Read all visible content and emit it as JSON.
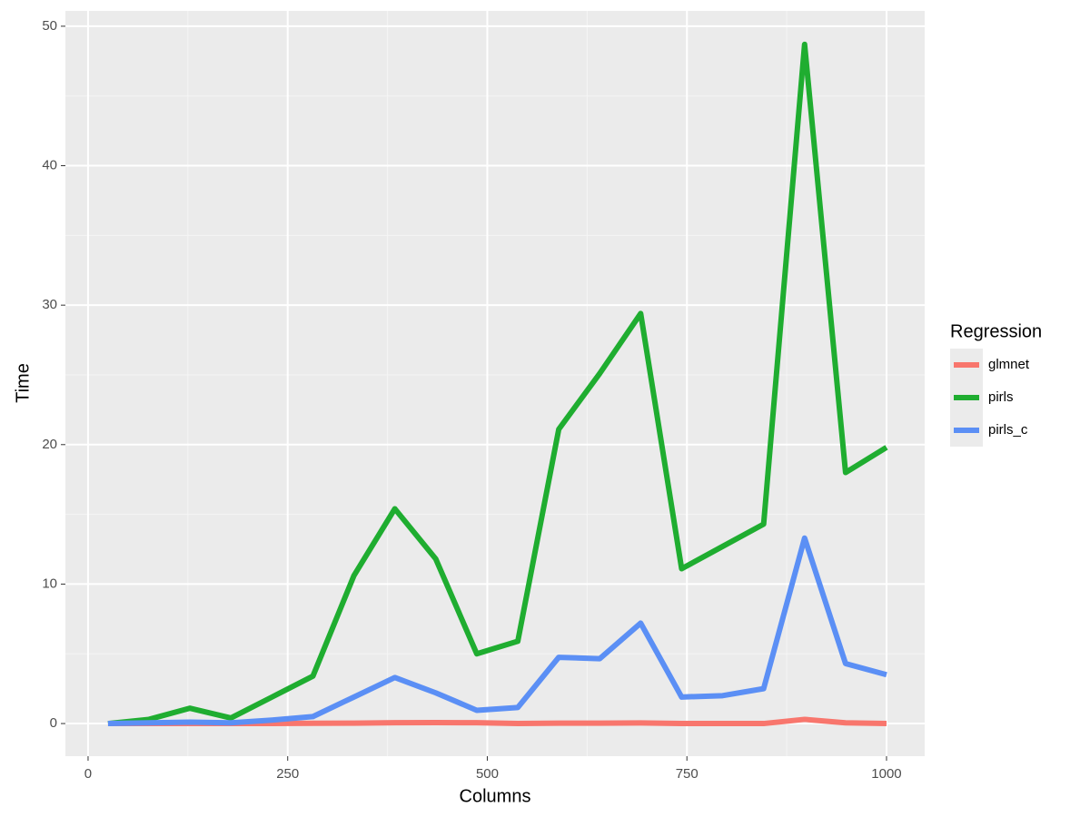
{
  "chart_data": {
    "type": "line",
    "x_label": "Columns",
    "y_label": "Time",
    "x": [
      25,
      76.3,
      127.6,
      178.9,
      230.3,
      281.6,
      332.9,
      384.2,
      435.5,
      486.8,
      538.2,
      589.5,
      640.8,
      692.1,
      743.4,
      794.7,
      846.1,
      897.4,
      948.7,
      1000
    ],
    "series": [
      {
        "name": "glmnet",
        "color": "#f8766d",
        "values": [
          0,
          0,
          0,
          0,
          0,
          0.02,
          0.03,
          0.06,
          0.07,
          0.06,
          0,
          0.03,
          0.03,
          0.04,
          0,
          0,
          0,
          0.3,
          0.05,
          0
        ]
      },
      {
        "name": "pirls",
        "color": "#1fad30",
        "values": [
          0,
          0.3,
          1.1,
          0.4,
          1.9,
          3.4,
          10.6,
          15.4,
          11.8,
          5.0,
          5.9,
          21.1,
          25.1,
          29.4,
          11.1,
          12.7,
          14.3,
          48.7,
          18.0,
          19.8
        ]
      },
      {
        "name": "pirls_c",
        "color": "#5b8ff5",
        "values": [
          0,
          0.05,
          0.1,
          0.05,
          0.25,
          0.5,
          1.9,
          3.3,
          2.2,
          0.95,
          1.15,
          4.75,
          4.65,
          7.2,
          1.9,
          2.0,
          2.5,
          13.3,
          4.3,
          3.5
        ]
      }
    ],
    "xlim": [
      -28.4,
      1047.8
    ],
    "xticks": [
      0,
      250,
      500,
      750,
      1000
    ],
    "ylim": [
      -2.34,
      51.1
    ],
    "yticks": [
      0,
      10,
      20,
      30,
      40,
      50
    ],
    "grid": true,
    "legend_title": "Regression",
    "legend_position": "right"
  }
}
